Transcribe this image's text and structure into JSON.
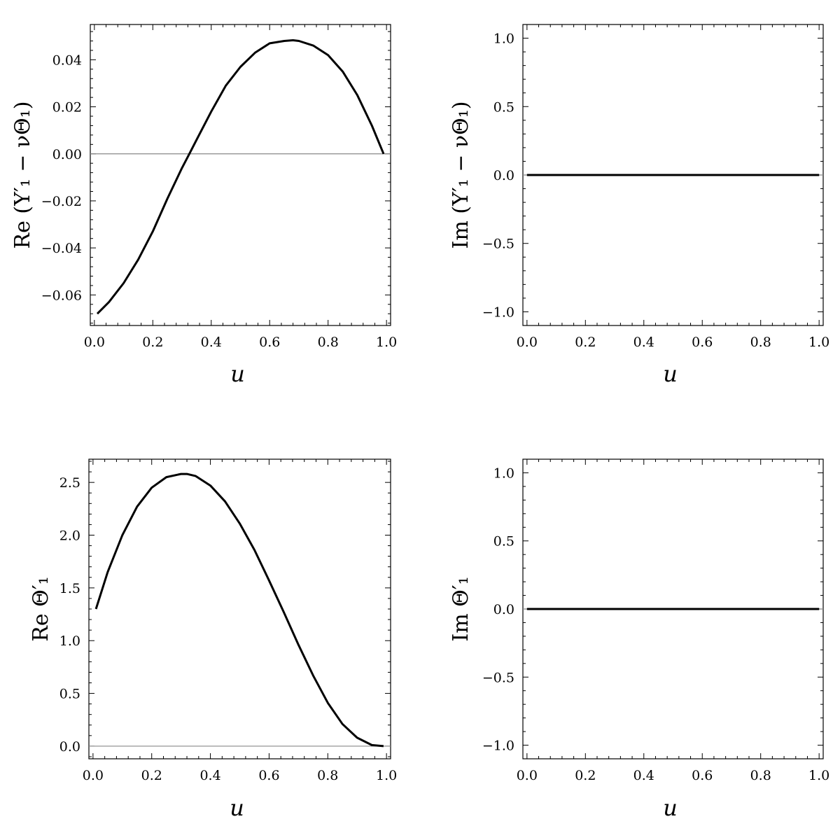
{
  "chart_data": [
    {
      "type": "line",
      "xlabel": "u",
      "ylabel": "Re (Y′₁ − νΘ₁)",
      "xlim": [
        0.0,
        1.0
      ],
      "ylim": [
        -0.073,
        0.055
      ],
      "xticks": [
        0.0,
        0.2,
        0.4,
        0.6,
        0.8,
        1.0
      ],
      "xtick_labels": [
        "0.0",
        "0.2",
        "0.4",
        "0.6",
        "0.8",
        "1.0"
      ],
      "yticks": [
        -0.06,
        -0.04,
        -0.02,
        0.0,
        0.02,
        0.04
      ],
      "ytick_labels": [
        "−0.06",
        "−0.04",
        "−0.02",
        "0.00",
        "0.02",
        "0.04"
      ],
      "grid": false,
      "series": [
        {
          "x": [
            0.01,
            0.05,
            0.1,
            0.15,
            0.2,
            0.25,
            0.3,
            0.325,
            0.35,
            0.4,
            0.45,
            0.5,
            0.55,
            0.6,
            0.65,
            0.68,
            0.7,
            0.75,
            0.8,
            0.85,
            0.9,
            0.95,
            0.99
          ],
          "y": [
            -0.068,
            -0.063,
            -0.055,
            -0.045,
            -0.033,
            -0.019,
            -0.006,
            0.0,
            0.006,
            0.018,
            0.029,
            0.037,
            0.043,
            0.047,
            0.048,
            0.0483,
            0.048,
            0.046,
            0.042,
            0.035,
            0.025,
            0.012,
            0.0
          ]
        }
      ]
    },
    {
      "type": "line",
      "xlabel": "u",
      "ylabel": "Im (Y′₁ − νΘ₁)",
      "xlim": [
        0.0,
        1.0
      ],
      "ylim": [
        -1.1,
        1.1
      ],
      "xticks": [
        0.0,
        0.2,
        0.4,
        0.6,
        0.8,
        1.0
      ],
      "xtick_labels": [
        "0.0",
        "0.2",
        "0.4",
        "0.6",
        "0.8",
        "1.0"
      ],
      "yticks": [
        -1.0,
        -0.5,
        0.0,
        0.5,
        1.0
      ],
      "ytick_labels": [
        "−1.0",
        "−0.5",
        "0.0",
        "0.5",
        "1.0"
      ],
      "grid": false,
      "series": [
        {
          "x": [
            0.0,
            1.0
          ],
          "y": [
            0.0,
            0.0
          ]
        }
      ]
    },
    {
      "type": "line",
      "xlabel": "u",
      "ylabel": "Re Θ′₁",
      "xlim": [
        0.0,
        1.0
      ],
      "ylim": [
        -0.12,
        2.72
      ],
      "xticks": [
        0.0,
        0.2,
        0.4,
        0.6,
        0.8,
        1.0
      ],
      "xtick_labels": [
        "0.0",
        "0.2",
        "0.4",
        "0.6",
        "0.8",
        "1.0"
      ],
      "yticks": [
        0.0,
        0.5,
        1.0,
        1.5,
        2.0,
        2.5
      ],
      "ytick_labels": [
        "0.0",
        "0.5",
        "1.0",
        "1.5",
        "2.0",
        "2.5"
      ],
      "grid": false,
      "series": [
        {
          "x": [
            0.01,
            0.05,
            0.1,
            0.15,
            0.2,
            0.25,
            0.3,
            0.32,
            0.35,
            0.4,
            0.45,
            0.5,
            0.55,
            0.6,
            0.65,
            0.7,
            0.75,
            0.8,
            0.85,
            0.9,
            0.95,
            0.99
          ],
          "y": [
            1.3,
            1.65,
            2.0,
            2.27,
            2.45,
            2.55,
            2.58,
            2.58,
            2.56,
            2.47,
            2.32,
            2.11,
            1.86,
            1.57,
            1.27,
            0.96,
            0.67,
            0.41,
            0.21,
            0.08,
            0.01,
            0.0
          ]
        }
      ]
    },
    {
      "type": "line",
      "xlabel": "u",
      "ylabel": "Im Θ′₁",
      "xlim": [
        0.0,
        1.0
      ],
      "ylim": [
        -1.1,
        1.1
      ],
      "xticks": [
        0.0,
        0.2,
        0.4,
        0.6,
        0.8,
        1.0
      ],
      "xtick_labels": [
        "0.0",
        "0.2",
        "0.4",
        "0.6",
        "0.8",
        "1.0"
      ],
      "yticks": [
        -1.0,
        -0.5,
        0.0,
        0.5,
        1.0
      ],
      "ytick_labels": [
        "−1.0",
        "−0.5",
        "0.0",
        "0.5",
        "1.0"
      ],
      "grid": false,
      "series": [
        {
          "x": [
            0.0,
            1.0
          ],
          "y": [
            0.0,
            0.0
          ]
        }
      ]
    }
  ]
}
